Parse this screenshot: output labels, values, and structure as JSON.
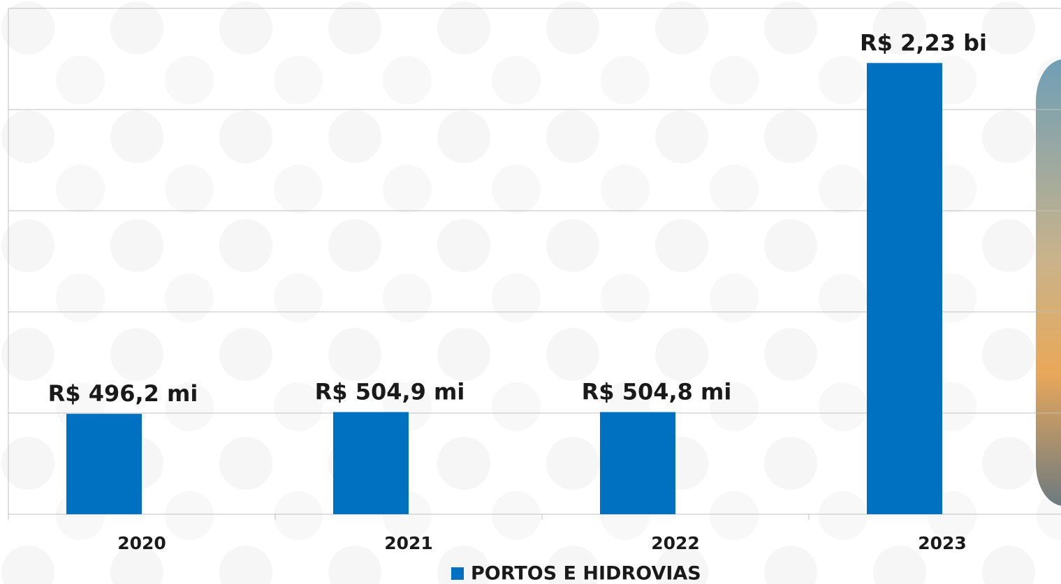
{
  "chart_data": {
    "type": "bar",
    "categories": [
      "2020",
      "2021",
      "2022",
      "2023"
    ],
    "series": [
      {
        "name": "PORTOS E HIDROVIAS",
        "color": "#0070c0",
        "values": [
          496.2,
          504.9,
          504.8,
          2230
        ],
        "value_labels": [
          "R$ 496,2 mi",
          "R$ 504,9 mi",
          "R$ 504,8 mi",
          "R$ 2,23 bi"
        ]
      }
    ],
    "ylim": [
      0,
      2500
    ],
    "yticks": [
      0,
      500,
      1000,
      1500,
      2000,
      2500
    ],
    "grid": true,
    "legend": "bottom"
  }
}
